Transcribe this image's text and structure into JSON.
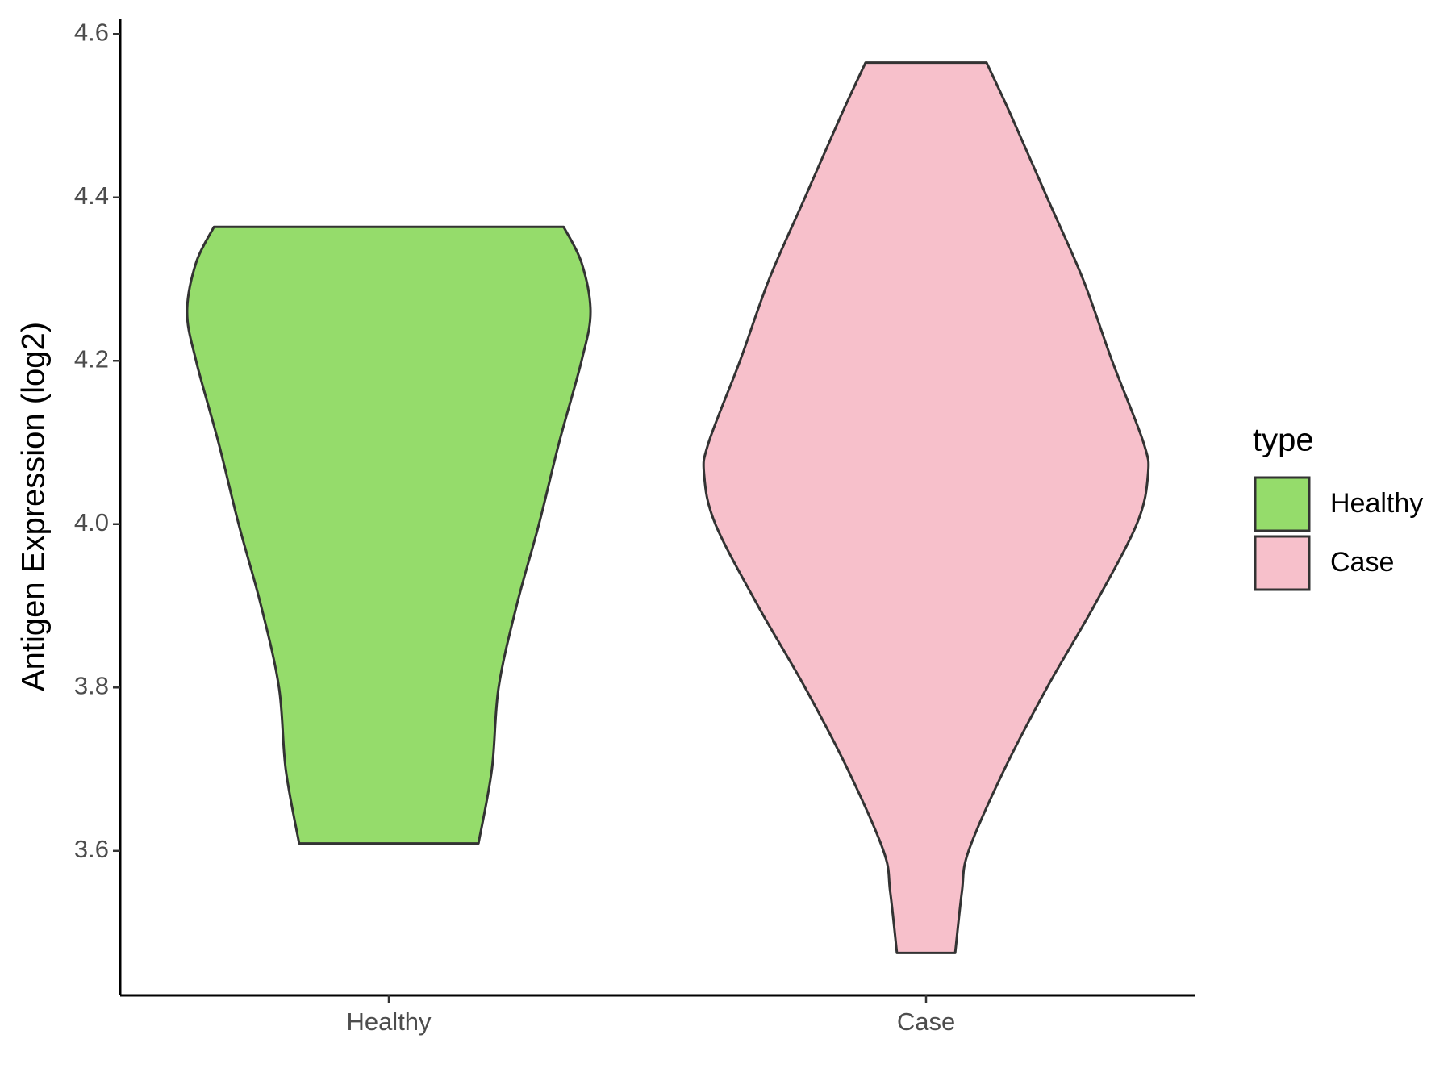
{
  "chart_data": {
    "type": "violin",
    "ylabel": "Antigen Expression (log2)",
    "categories": [
      "Healthy",
      "Case"
    ],
    "legend_title": "type",
    "legend_position": "right",
    "ylim": [
      3.423,
      4.619
    ],
    "yticks": [
      3.6,
      3.8,
      {
        "value": 4,
        "label": "4.0"
      },
      4.2,
      4.4,
      4.6
    ],
    "series": [
      {
        "name": "Healthy",
        "color": "#95dc6b",
        "y": [
          3.609,
          3.7,
          3.8,
          3.9,
          4.0,
          4.1,
          4.2,
          4.26,
          4.32,
          4.364
        ],
        "density": [
          0.4,
          0.46,
          0.49,
          0.57,
          0.67,
          0.76,
          0.86,
          0.9,
          0.86,
          0.78
        ]
      },
      {
        "name": "Case",
        "color": "#f7c0cb",
        "y": [
          3.475,
          3.55,
          3.6,
          3.7,
          3.8,
          3.9,
          4.0,
          4.06,
          4.1,
          4.2,
          4.3,
          4.4,
          4.5,
          4.565
        ],
        "density": [
          0.13,
          0.16,
          0.19,
          0.35,
          0.54,
          0.75,
          0.94,
          0.99,
          0.97,
          0.83,
          0.7,
          0.54,
          0.38,
          0.27
        ]
      }
    ]
  }
}
